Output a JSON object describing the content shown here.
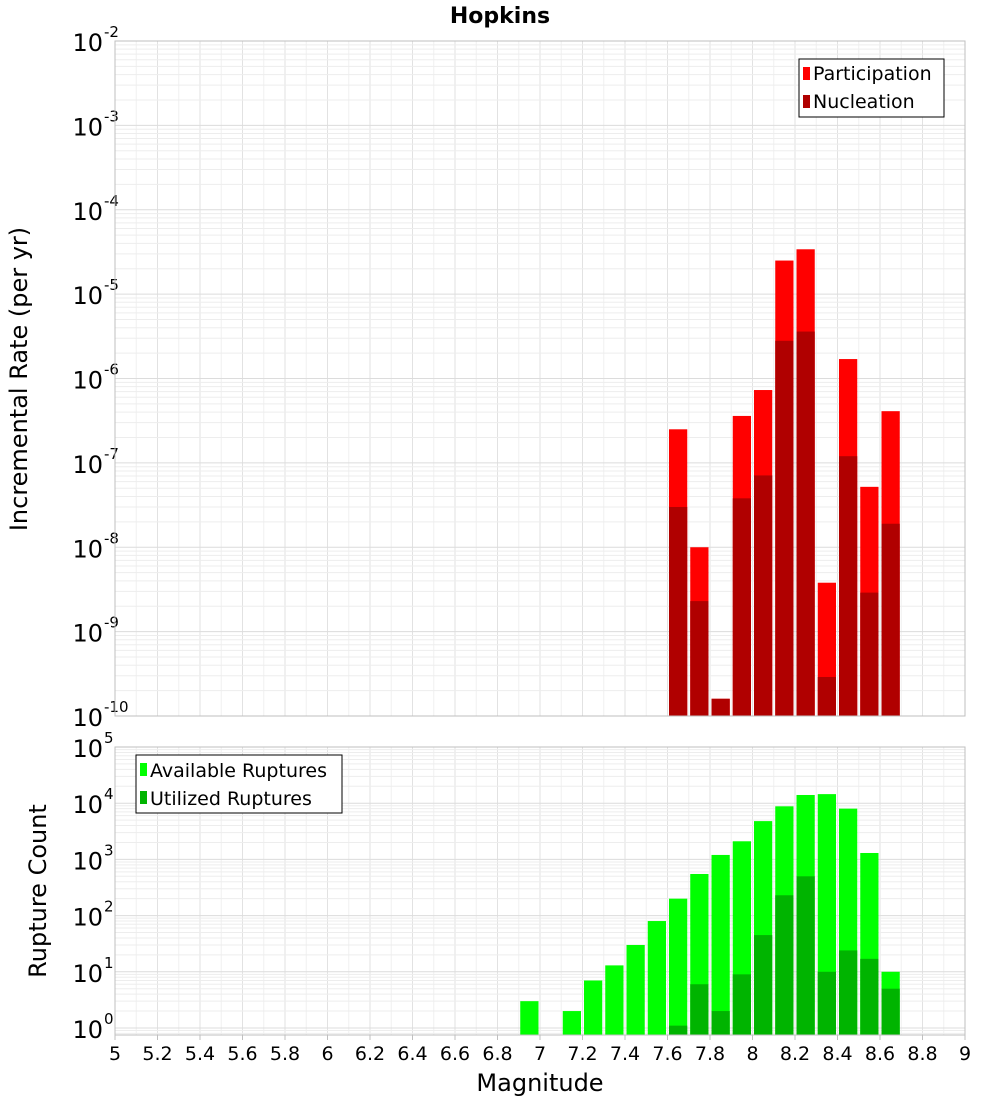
{
  "chart_data": [
    {
      "type": "bar",
      "title": "Hopkins",
      "ylabel": "Incremental Rate (per yr)",
      "yscale": "log",
      "ylim": [
        1e-10,
        0.01
      ],
      "y_tick_exponents": [
        -2,
        -3,
        -4,
        -5,
        -6,
        -7,
        -8,
        -9,
        -10
      ],
      "x": [
        7.65,
        7.75,
        7.85,
        7.95,
        8.05,
        8.15,
        8.25,
        8.35,
        8.45,
        8.55,
        8.65
      ],
      "bin_width": 0.1,
      "legend_position": "top-right",
      "series": [
        {
          "name": "Participation",
          "color": "#ff0000",
          "values": [
            2.5e-07,
            1e-08,
            1.6e-10,
            3.6e-07,
            7.3e-07,
            2.5e-05,
            3.4e-05,
            3.8e-09,
            1.7e-06,
            5.2e-08,
            4.1e-07
          ]
        },
        {
          "name": "Nucleation",
          "color": "#b00000",
          "values": [
            3e-08,
            2.3e-09,
            1.6e-10,
            3.8e-08,
            7.1e-08,
            2.8e-06,
            3.6e-06,
            2.9e-10,
            1.2e-07,
            2.9e-09,
            1.9e-08
          ]
        }
      ]
    },
    {
      "type": "bar",
      "xlabel": "Magnitude",
      "ylabel": "Rupture Count",
      "yscale": "log",
      "ylim": [
        0.75,
        100000.0
      ],
      "y_tick_exponents": [
        5,
        4,
        3,
        2,
        1,
        0
      ],
      "xlim": [
        5,
        9
      ],
      "x_ticks": [
        "5",
        "5.2",
        "5.4",
        "5.6",
        "5.8",
        "6",
        "6.2",
        "6.4",
        "6.6",
        "6.8",
        "7",
        "7.2",
        "7.4",
        "7.6",
        "7.8",
        "8",
        "8.2",
        "8.4",
        "8.6",
        "8.8",
        "9"
      ],
      "x": [
        6.95,
        7.15,
        7.25,
        7.35,
        7.45,
        7.55,
        7.65,
        7.75,
        7.85,
        7.95,
        8.05,
        8.15,
        8.25,
        8.35,
        8.45,
        8.55,
        8.65
      ],
      "bin_width": 0.1,
      "legend_position": "top-left",
      "series": [
        {
          "name": "Available Ruptures",
          "color": "#00ff00",
          "values": [
            3,
            2,
            7,
            13,
            30,
            80,
            200,
            550,
            1200,
            2100,
            4800,
            8800,
            14000,
            14500,
            8000,
            1300,
            10
          ]
        },
        {
          "name": "Utilized Ruptures",
          "color": "#00b400",
          "values": [
            0,
            0,
            0,
            0,
            0,
            0,
            1.1,
            6,
            2,
            9,
            45,
            230,
            500,
            10,
            24,
            17,
            5
          ]
        }
      ]
    }
  ]
}
